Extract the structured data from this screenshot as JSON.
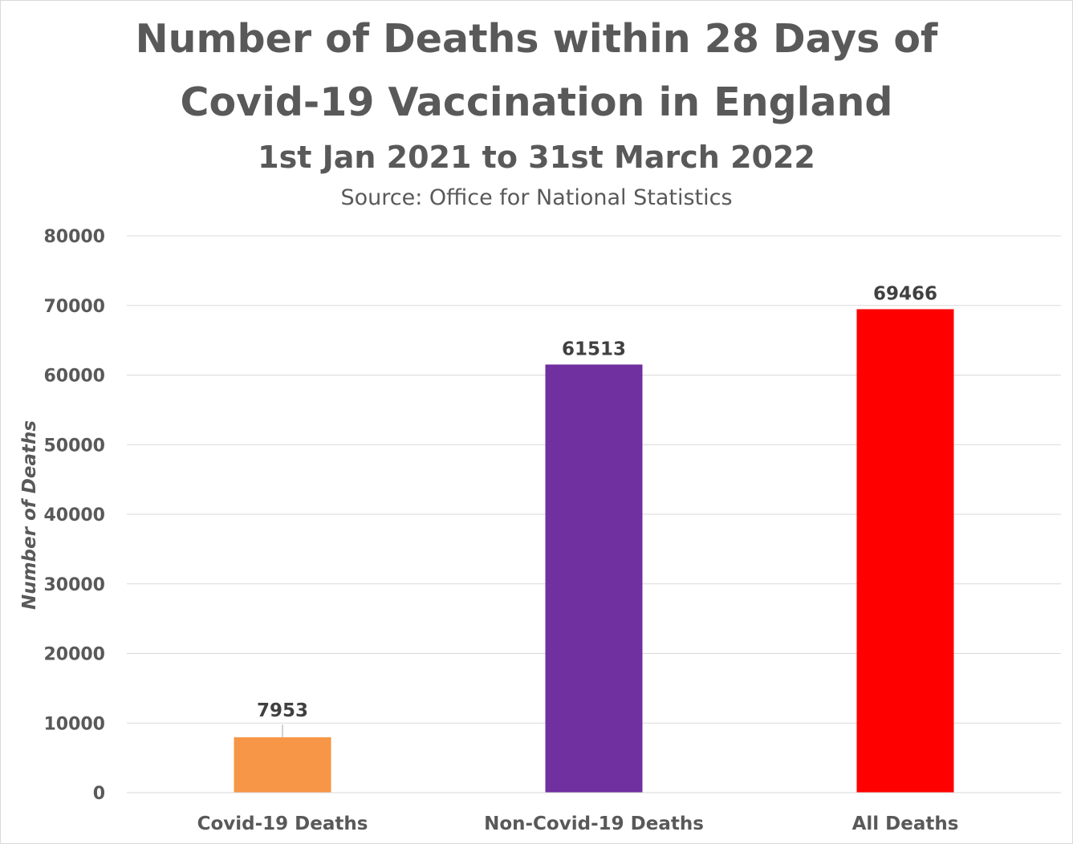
{
  "chart_data": {
    "type": "bar",
    "title": "Number of Deaths within 28 Days of Covid-19 Vaccination in England",
    "title_lines": [
      "Number of Deaths within 28 Days of",
      "Covid-19 Vaccination in England"
    ],
    "subtitle": "1st Jan 2021 to 31st March 2022",
    "source": "Source: Office for National Statistics",
    "xlabel": "",
    "ylabel": "Number of Deaths",
    "ylim": [
      0,
      80000
    ],
    "yticks": [
      0,
      10000,
      20000,
      30000,
      40000,
      50000,
      60000,
      70000,
      80000
    ],
    "grid": true,
    "legend": "none",
    "categories": [
      "Covid-19 Deaths",
      "Non-Covid-19 Deaths",
      "All Deaths"
    ],
    "values": [
      7953,
      61513,
      69466
    ],
    "colors": [
      "#f79646",
      "#7030a0",
      "#ff0000"
    ],
    "data_labels": [
      "7953",
      "61513",
      "69466"
    ]
  },
  "colors": {
    "text": "#595959",
    "label": "#404040",
    "grid": "#d9d9d9"
  }
}
